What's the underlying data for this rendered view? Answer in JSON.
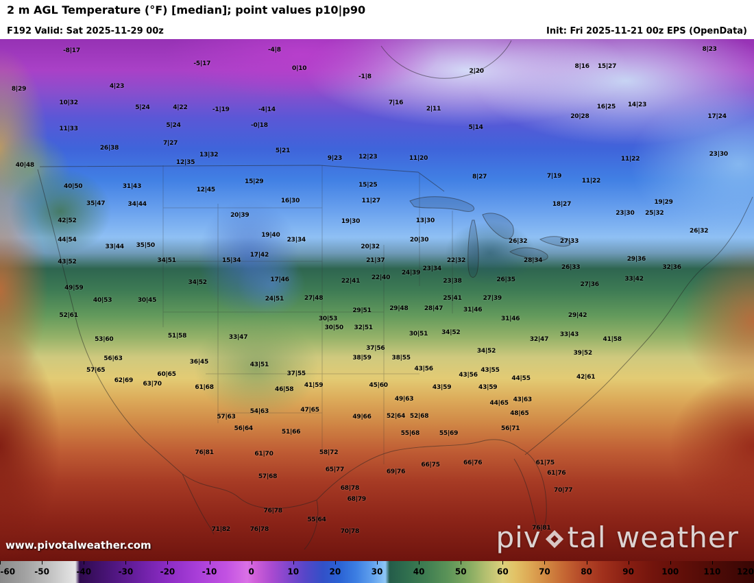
{
  "header": {
    "title": "2 m AGL Temperature (°F) [median]; point values p10|p90",
    "valid": "F192 Valid: Sat 2025-11-29 00z",
    "init": "Init: Fri 2025-11-21 00z EPS (OpenData)"
  },
  "watermark": "www.pivotalweather.com",
  "logo": {
    "pre": "piv",
    "post": "tal weather"
  },
  "chart_data": {
    "type": "heatmap",
    "title": "2 m AGL Temperature (°F) [median]; point values p10|p90",
    "units": "°F",
    "legend_position": "bottom",
    "colorbar": {
      "min": -60,
      "max": 120,
      "ticks": [
        -60,
        -50,
        -40,
        -30,
        -20,
        -10,
        0,
        10,
        20,
        30,
        40,
        50,
        60,
        70,
        80,
        90,
        100,
        110,
        120
      ],
      "stops": [
        {
          "v": -60,
          "c": "#8a8a8a"
        },
        {
          "v": -54,
          "c": "#a2a2a2"
        },
        {
          "v": -48,
          "c": "#c2c2c2"
        },
        {
          "v": -42,
          "c": "#e6e6e6"
        },
        {
          "v": -41,
          "c": "#2e0a4e"
        },
        {
          "v": -34,
          "c": "#4a1478"
        },
        {
          "v": -27,
          "c": "#6a1fa2"
        },
        {
          "v": -20,
          "c": "#8c2cc4"
        },
        {
          "v": -13,
          "c": "#a83ed8"
        },
        {
          "v": -6,
          "c": "#c252e2"
        },
        {
          "v": -1,
          "c": "#da70e6"
        },
        {
          "v": 1,
          "c": "#cf5ed8"
        },
        {
          "v": 5,
          "c": "#a84ad0"
        },
        {
          "v": 9,
          "c": "#7e46cc"
        },
        {
          "v": 13,
          "c": "#5446c8"
        },
        {
          "v": 17,
          "c": "#3350c8"
        },
        {
          "v": 21,
          "c": "#2a62d4"
        },
        {
          "v": 25,
          "c": "#3c7ee2"
        },
        {
          "v": 29,
          "c": "#62a2ee"
        },
        {
          "v": 32,
          "c": "#8ec6f6"
        },
        {
          "v": 33,
          "c": "#245c4a"
        },
        {
          "v": 37,
          "c": "#2f6e4e"
        },
        {
          "v": 42,
          "c": "#417f52"
        },
        {
          "v": 47,
          "c": "#5c9458"
        },
        {
          "v": 52,
          "c": "#85ab62"
        },
        {
          "v": 56,
          "c": "#b4c070"
        },
        {
          "v": 60,
          "c": "#ddd07c"
        },
        {
          "v": 63,
          "c": "#e2c266"
        },
        {
          "v": 67,
          "c": "#dca452"
        },
        {
          "v": 71,
          "c": "#d08440"
        },
        {
          "v": 75,
          "c": "#c46432"
        },
        {
          "v": 79,
          "c": "#b44828"
        },
        {
          "v": 84,
          "c": "#a0301c"
        },
        {
          "v": 90,
          "c": "#881e12"
        },
        {
          "v": 96,
          "c": "#72140c"
        },
        {
          "v": 104,
          "c": "#5e0e08"
        },
        {
          "v": 112,
          "c": "#4a0a06"
        },
        {
          "v": 120,
          "c": "#380604"
        }
      ]
    },
    "points": [
      [
        9.5,
        2.2,
        "-8|17"
      ],
      [
        36.4,
        2.1,
        "-4|8"
      ],
      [
        94.1,
        2.0,
        "8|23"
      ],
      [
        26.8,
        4.7,
        "-5|17"
      ],
      [
        39.7,
        5.7,
        "0|10"
      ],
      [
        77.2,
        5.3,
        "8|16"
      ],
      [
        80.5,
        5.3,
        "15|27"
      ],
      [
        48.4,
        7.2,
        "-1|8"
      ],
      [
        63.2,
        6.2,
        "2|20"
      ],
      [
        2.5,
        9.6,
        "8|29"
      ],
      [
        15.5,
        9.1,
        "4|23"
      ],
      [
        9.1,
        12.2,
        "10|32"
      ],
      [
        18.9,
        13.1,
        "5|24"
      ],
      [
        23.9,
        13.1,
        "4|22"
      ],
      [
        29.3,
        13.5,
        "-1|19"
      ],
      [
        35.4,
        13.5,
        "-4|14"
      ],
      [
        52.5,
        12.2,
        "7|16"
      ],
      [
        57.5,
        13.4,
        "2|11"
      ],
      [
        80.4,
        13.0,
        "16|25"
      ],
      [
        84.5,
        12.6,
        "14|23"
      ],
      [
        76.9,
        14.8,
        "20|28"
      ],
      [
        95.1,
        14.8,
        "17|24"
      ],
      [
        9.1,
        17.2,
        "11|33"
      ],
      [
        23.0,
        16.6,
        "5|24"
      ],
      [
        34.4,
        16.6,
        "-0|18"
      ],
      [
        63.1,
        17.0,
        "5|14"
      ],
      [
        14.5,
        20.9,
        "26|38"
      ],
      [
        22.6,
        20.0,
        "7|27"
      ],
      [
        27.7,
        22.2,
        "13|32"
      ],
      [
        24.6,
        23.7,
        "12|35"
      ],
      [
        37.5,
        21.4,
        "5|21"
      ],
      [
        44.4,
        22.9,
        "9|23"
      ],
      [
        48.8,
        22.6,
        "12|23"
      ],
      [
        55.5,
        22.9,
        "11|20"
      ],
      [
        83.6,
        23.0,
        "11|22"
      ],
      [
        95.3,
        22.1,
        "23|30"
      ],
      [
        3.3,
        24.2,
        "40|48"
      ],
      [
        17.5,
        28.2,
        "31|43"
      ],
      [
        27.3,
        28.9,
        "12|45"
      ],
      [
        33.7,
        27.3,
        "15|29"
      ],
      [
        48.8,
        28.0,
        "15|25"
      ],
      [
        63.6,
        26.4,
        "8|27"
      ],
      [
        73.5,
        26.3,
        "7|19"
      ],
      [
        78.4,
        27.2,
        "11|22"
      ],
      [
        9.7,
        28.2,
        "40|50"
      ],
      [
        12.7,
        31.5,
        "35|47"
      ],
      [
        18.2,
        31.7,
        "34|44"
      ],
      [
        38.5,
        31.0,
        "16|30"
      ],
      [
        49.2,
        31.0,
        "11|27"
      ],
      [
        88.0,
        31.3,
        "19|29"
      ],
      [
        74.5,
        31.7,
        "18|27"
      ],
      [
        31.8,
        33.8,
        "20|39"
      ],
      [
        46.5,
        35.0,
        "19|30"
      ],
      [
        56.4,
        34.8,
        "13|30"
      ],
      [
        82.9,
        33.4,
        "23|30"
      ],
      [
        86.8,
        33.4,
        "25|32"
      ],
      [
        8.9,
        34.8,
        "42|52"
      ],
      [
        8.9,
        38.5,
        "44|54"
      ],
      [
        15.2,
        39.8,
        "33|44"
      ],
      [
        19.3,
        39.6,
        "35|50"
      ],
      [
        35.9,
        37.6,
        "19|40"
      ],
      [
        39.3,
        38.5,
        "23|34"
      ],
      [
        49.1,
        39.8,
        "20|32"
      ],
      [
        55.6,
        38.5,
        "20|30"
      ],
      [
        68.7,
        38.8,
        "26|32"
      ],
      [
        75.5,
        38.8,
        "27|33"
      ],
      [
        92.7,
        36.8,
        "26|32"
      ],
      [
        8.9,
        42.7,
        "43|52"
      ],
      [
        22.1,
        42.4,
        "34|51"
      ],
      [
        30.7,
        42.4,
        "15|34"
      ],
      [
        34.4,
        41.4,
        "17|42"
      ],
      [
        49.8,
        42.4,
        "21|37"
      ],
      [
        57.3,
        44.0,
        "23|34"
      ],
      [
        60.5,
        42.4,
        "22|32"
      ],
      [
        70.7,
        42.4,
        "28|34"
      ],
      [
        75.7,
        43.8,
        "26|33"
      ],
      [
        84.4,
        42.2,
        "29|36"
      ],
      [
        89.1,
        43.8,
        "32|36"
      ],
      [
        9.8,
        47.7,
        "49|59"
      ],
      [
        26.2,
        46.6,
        "34|52"
      ],
      [
        37.1,
        46.1,
        "17|46"
      ],
      [
        46.5,
        46.4,
        "22|41"
      ],
      [
        50.5,
        45.7,
        "22|40"
      ],
      [
        54.5,
        44.8,
        "24|39"
      ],
      [
        60.0,
        46.4,
        "23|38"
      ],
      [
        67.1,
        46.1,
        "26|35"
      ],
      [
        78.2,
        47.0,
        "27|36"
      ],
      [
        84.1,
        46.0,
        "33|42"
      ],
      [
        13.6,
        50.1,
        "40|53"
      ],
      [
        19.5,
        50.1,
        "30|45"
      ],
      [
        36.4,
        49.8,
        "24|51"
      ],
      [
        41.6,
        49.7,
        "27|48"
      ],
      [
        60.0,
        49.7,
        "25|41"
      ],
      [
        65.3,
        49.7,
        "27|39"
      ],
      [
        9.1,
        53.0,
        "52|61"
      ],
      [
        48.0,
        52.0,
        "29|51"
      ],
      [
        52.9,
        51.6,
        "29|48"
      ],
      [
        57.5,
        51.6,
        "28|47"
      ],
      [
        62.7,
        51.9,
        "31|46"
      ],
      [
        76.6,
        53.0,
        "29|42"
      ],
      [
        13.8,
        57.6,
        "53|60"
      ],
      [
        23.5,
        56.9,
        "51|58"
      ],
      [
        31.6,
        57.2,
        "33|47"
      ],
      [
        43.5,
        53.6,
        "30|53"
      ],
      [
        44.3,
        55.3,
        "30|50"
      ],
      [
        48.2,
        55.3,
        "32|51"
      ],
      [
        55.5,
        56.5,
        "30|51"
      ],
      [
        59.8,
        56.2,
        "34|52"
      ],
      [
        67.7,
        53.6,
        "31|46"
      ],
      [
        71.5,
        57.6,
        "32|47"
      ],
      [
        75.5,
        56.6,
        "33|43"
      ],
      [
        81.2,
        57.6,
        "41|58"
      ],
      [
        15.0,
        61.2,
        "56|63"
      ],
      [
        26.4,
        61.9,
        "36|45"
      ],
      [
        49.8,
        59.3,
        "37|56"
      ],
      [
        48.0,
        61.1,
        "38|59"
      ],
      [
        53.2,
        61.1,
        "38|55"
      ],
      [
        64.5,
        59.8,
        "34|52"
      ],
      [
        77.3,
        60.2,
        "39|52"
      ],
      [
        12.7,
        63.5,
        "57|65"
      ],
      [
        22.1,
        64.3,
        "60|65"
      ],
      [
        34.4,
        62.4,
        "43|51"
      ],
      [
        39.3,
        64.1,
        "37|55"
      ],
      [
        56.2,
        63.2,
        "43|56"
      ],
      [
        62.1,
        64.4,
        "43|56"
      ],
      [
        65.0,
        63.5,
        "43|55"
      ],
      [
        69.1,
        65.0,
        "44|55"
      ],
      [
        77.7,
        64.8,
        "42|61"
      ],
      [
        16.4,
        65.4,
        "62|69"
      ],
      [
        20.2,
        66.1,
        "63|70"
      ],
      [
        27.1,
        66.8,
        "61|68"
      ],
      [
        37.7,
        67.1,
        "46|58"
      ],
      [
        41.6,
        66.4,
        "41|59"
      ],
      [
        50.2,
        66.4,
        "45|60"
      ],
      [
        58.6,
        66.8,
        "43|59"
      ],
      [
        64.7,
        66.8,
        "43|59"
      ],
      [
        53.6,
        69.0,
        "49|63"
      ],
      [
        66.2,
        69.8,
        "44|65"
      ],
      [
        69.3,
        69.1,
        "43|63"
      ],
      [
        34.4,
        71.4,
        "54|63"
      ],
      [
        30.0,
        72.4,
        "57|63"
      ],
      [
        41.1,
        71.1,
        "47|65"
      ],
      [
        48.0,
        72.4,
        "49|66"
      ],
      [
        52.5,
        72.3,
        "52|64"
      ],
      [
        55.6,
        72.3,
        "52|68"
      ],
      [
        68.9,
        71.7,
        "48|65"
      ],
      [
        32.3,
        74.6,
        "56|64"
      ],
      [
        38.6,
        75.3,
        "51|66"
      ],
      [
        54.4,
        75.6,
        "55|68"
      ],
      [
        59.5,
        75.6,
        "55|69"
      ],
      [
        67.7,
        74.6,
        "56|71"
      ],
      [
        27.1,
        79.2,
        "76|81"
      ],
      [
        35.0,
        79.5,
        "61|70"
      ],
      [
        43.6,
        79.2,
        "58|72"
      ],
      [
        57.1,
        81.6,
        "66|75"
      ],
      [
        62.7,
        81.2,
        "66|76"
      ],
      [
        35.5,
        83.8,
        "57|68"
      ],
      [
        44.4,
        82.5,
        "65|77"
      ],
      [
        52.5,
        82.9,
        "69|76"
      ],
      [
        72.3,
        81.2,
        "61|75"
      ],
      [
        73.8,
        83.2,
        "61|76"
      ],
      [
        46.4,
        86.1,
        "68|78"
      ],
      [
        74.7,
        86.5,
        "70|77"
      ],
      [
        47.3,
        88.2,
        "68|79"
      ],
      [
        36.2,
        90.4,
        "76|78"
      ],
      [
        42.0,
        92.1,
        "55|64"
      ],
      [
        46.4,
        94.3,
        "70|78"
      ],
      [
        71.8,
        93.7,
        "76|81"
      ],
      [
        29.3,
        93.9,
        "71|82"
      ],
      [
        34.4,
        93.9,
        "76|78"
      ]
    ]
  }
}
